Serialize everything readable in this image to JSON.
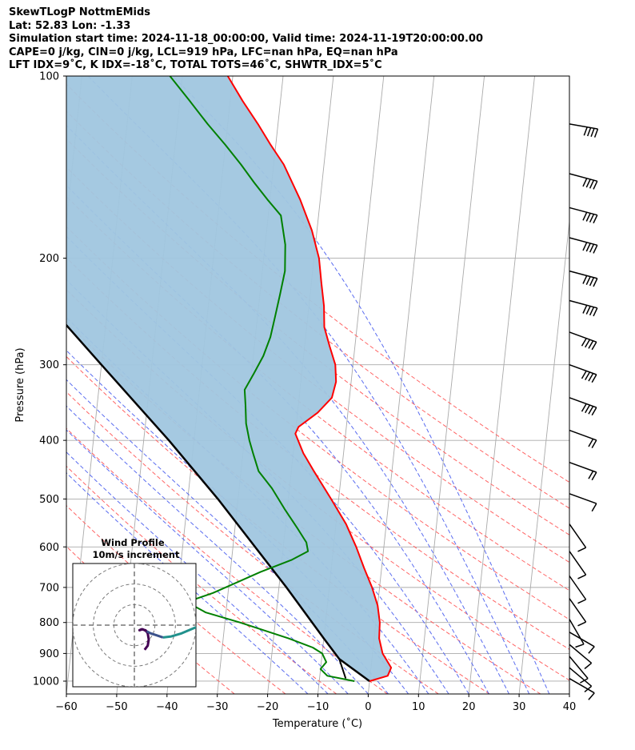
{
  "header": {
    "line1": "SkewTLogP NottmEMids",
    "line2": "Lat: 52.83   Lon: -1.33",
    "line3": "Simulation start time: 2024-11-18_00:00:00, Valid time: 2024-11-19T20:00:00.00",
    "line4": "CAPE=0 j/kg, CIN=0 j/kg, LCL=919 hPa, LFC=nan hPa, EQ=nan hPa",
    "line5": "LFT IDX=9˚C, K IDX=-18˚C, TOTAL TOTS=46˚C, SHWTR_IDX=5˚C"
  },
  "hodograph": {
    "title": "Wind Profile",
    "subtitle": "10m/s increment"
  },
  "colors": {
    "temperature": "#ff0000",
    "dewpoint": "#008000",
    "parcel": "#000000",
    "fill": "#a0c6df",
    "dry_adiabats": "#ff6464",
    "moist_adiabats": "#5a6cf0",
    "isotherms": "#aaaaaa"
  },
  "chart_data": {
    "type": "line",
    "xlabel": "Temperature (˚C)",
    "ylabel": "Pressure (hPa)",
    "xlim": [
      -60,
      40
    ],
    "ylim": [
      1050,
      100
    ],
    "y_scale": "log",
    "grid": true,
    "x_ticks": [
      -60,
      -50,
      -40,
      -30,
      -20,
      -10,
      0,
      10,
      20,
      30,
      40
    ],
    "x_tick_labels": [
      "−60",
      "−50",
      "−40",
      "−30",
      "−20",
      "−10",
      "0",
      "10",
      "20",
      "30",
      "40"
    ],
    "y_ticks": [
      1000,
      900,
      800,
      700,
      600,
      500,
      400,
      300,
      200,
      100
    ],
    "y_tick_labels": [
      "1000",
      "900",
      "800",
      "700",
      "600",
      "500",
      "400",
      "300",
      "200",
      "100"
    ],
    "series": [
      {
        "role": "temperature",
        "points": [
          [
            1000,
            0.0
          ],
          [
            980,
            3.5
          ],
          [
            950,
            4.0
          ],
          [
            900,
            2.0
          ],
          [
            850,
            1.0
          ],
          [
            800,
            0.8
          ],
          [
            750,
            0.0
          ],
          [
            700,
            -1.5
          ],
          [
            650,
            -3.5
          ],
          [
            600,
            -5.5
          ],
          [
            550,
            -8.0
          ],
          [
            500,
            -11.5
          ],
          [
            450,
            -15.5
          ],
          [
            420,
            -18.0
          ],
          [
            390,
            -20.0
          ],
          [
            380,
            -19.5
          ],
          [
            360,
            -16.0
          ],
          [
            340,
            -13.5
          ],
          [
            320,
            -13.0
          ],
          [
            300,
            -13.5
          ],
          [
            280,
            -15.0
          ],
          [
            260,
            -16.5
          ],
          [
            240,
            -17.0
          ],
          [
            220,
            -18.0
          ],
          [
            200,
            -19.0
          ],
          [
            180,
            -21.0
          ],
          [
            160,
            -24.0
          ],
          [
            140,
            -28.0
          ],
          [
            130,
            -31.0
          ],
          [
            120,
            -34.0
          ],
          [
            110,
            -37.5
          ],
          [
            100,
            -41.0
          ]
        ]
      },
      {
        "role": "dewpoint",
        "points": [
          [
            1000,
            -3.0
          ],
          [
            980,
            -8.5
          ],
          [
            955,
            -10.0
          ],
          [
            930,
            -9.0
          ],
          [
            900,
            -10.0
          ],
          [
            880,
            -12.0
          ],
          [
            850,
            -17.0
          ],
          [
            800,
            -27.0
          ],
          [
            770,
            -34.0
          ],
          [
            740,
            -38.0
          ],
          [
            715,
            -33.0
          ],
          [
            690,
            -29.0
          ],
          [
            660,
            -24.0
          ],
          [
            630,
            -18.0
          ],
          [
            610,
            -15.0
          ],
          [
            590,
            -15.5
          ],
          [
            560,
            -17.5
          ],
          [
            520,
            -20.5
          ],
          [
            480,
            -23.5
          ],
          [
            450,
            -26.5
          ],
          [
            420,
            -28.0
          ],
          [
            400,
            -29.0
          ],
          [
            375,
            -30.0
          ],
          [
            350,
            -30.5
          ],
          [
            330,
            -31.0
          ],
          [
            310,
            -29.5
          ],
          [
            290,
            -28.0
          ],
          [
            270,
            -27.0
          ],
          [
            250,
            -26.5
          ],
          [
            230,
            -26.0
          ],
          [
            210,
            -25.5
          ],
          [
            190,
            -26.0
          ],
          [
            170,
            -27.5
          ],
          [
            160,
            -30.5
          ],
          [
            150,
            -33.5
          ],
          [
            140,
            -36.5
          ],
          [
            130,
            -40.0
          ],
          [
            120,
            -44.0
          ],
          [
            110,
            -48.0
          ],
          [
            100,
            -52.5
          ]
        ]
      },
      {
        "role": "parcel",
        "points": [
          [
            1000,
            0.0
          ],
          [
            919,
            -6.5
          ],
          [
            850,
            -10.0
          ],
          [
            700,
            -18.5
          ],
          [
            500,
            -34.0
          ],
          [
            400,
            -45.0
          ],
          [
            300,
            -60.0
          ],
          [
            200,
            -81.0
          ],
          [
            150,
            -96.0
          ],
          [
            100,
            -118.0
          ]
        ]
      }
    ],
    "surface_parcel_segment": {
      "points": [
        [
          990,
          -4.8
        ],
        [
          919,
          -6.5
        ]
      ]
    },
    "wind_barbs": [
      {
        "p": 120,
        "speed": 40,
        "dir": 280
      },
      {
        "p": 145,
        "speed": 35,
        "dir": 285
      },
      {
        "p": 165,
        "speed": 35,
        "dir": 285
      },
      {
        "p": 185,
        "speed": 35,
        "dir": 285
      },
      {
        "p": 210,
        "speed": 35,
        "dir": 285
      },
      {
        "p": 235,
        "speed": 35,
        "dir": 285
      },
      {
        "p": 265,
        "speed": 35,
        "dir": 290
      },
      {
        "p": 300,
        "speed": 35,
        "dir": 290
      },
      {
        "p": 340,
        "speed": 35,
        "dir": 290
      },
      {
        "p": 385,
        "speed": 15,
        "dir": 290
      },
      {
        "p": 435,
        "speed": 15,
        "dir": 290
      },
      {
        "p": 490,
        "speed": 10,
        "dir": 290
      },
      {
        "p": 550,
        "speed": 10,
        "dir": 325
      },
      {
        "p": 610,
        "speed": 10,
        "dir": 325
      },
      {
        "p": 670,
        "speed": 10,
        "dir": 325
      },
      {
        "p": 730,
        "speed": 10,
        "dir": 325
      },
      {
        "p": 790,
        "speed": 10,
        "dir": 330
      },
      {
        "p": 830,
        "speed": 10,
        "dir": 300
      },
      {
        "p": 870,
        "speed": 10,
        "dir": 310
      },
      {
        "p": 910,
        "speed": 10,
        "dir": 320
      },
      {
        "p": 950,
        "speed": 10,
        "dir": 310
      },
      {
        "p": 990,
        "speed": 10,
        "dir": 300
      }
    ],
    "hodograph_data": {
      "ring_increment_ms": 10,
      "rings": [
        10,
        20,
        30
      ],
      "range_ms": 30,
      "segments": [
        {
          "color": "#440154",
          "points": [
            [
              5,
              12
            ],
            [
              6.5,
              10
            ],
            [
              7,
              7
            ],
            [
              6.5,
              4
            ],
            [
              5.5,
              2.5
            ],
            [
              3.5,
              2
            ],
            [
              2.5,
              2.5
            ],
            [
              4,
              2
            ],
            [
              6,
              3
            ]
          ]
        },
        {
          "color": "#3b528b",
          "points": [
            [
              6,
              3
            ],
            [
              8,
              4
            ],
            [
              11,
              5
            ],
            [
              14,
              6
            ]
          ]
        },
        {
          "color": "#21918c",
          "points": [
            [
              14,
              6
            ],
            [
              18,
              5.5
            ],
            [
              23,
              4
            ],
            [
              30,
              1
            ]
          ]
        }
      ]
    }
  }
}
